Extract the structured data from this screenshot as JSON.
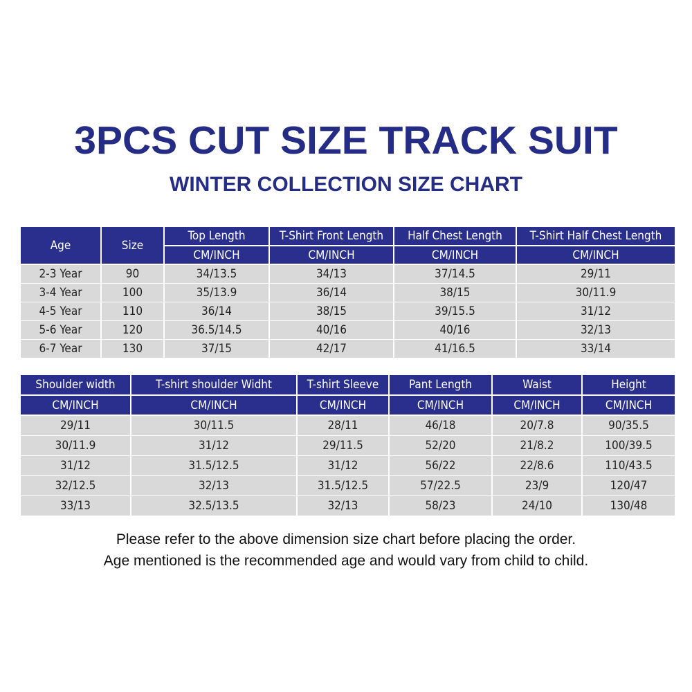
{
  "title": "3PCS CUT SIZE TRACK SUIT",
  "subtitle": "WINTER COLLECTION SIZE CHART",
  "table1": {
    "headers": [
      "Age",
      "Size",
      "Top Length",
      "T-Shirt Front Length",
      "Half Chest Length",
      "T-Shirt Half Chest Length"
    ],
    "units": [
      "CM/INCH",
      "CM/INCH",
      "CM/INCH",
      "CM/INCH"
    ],
    "rows": [
      [
        "2-3 Year",
        "90",
        "34/13.5",
        "34/13",
        "37/14.5",
        "29/11"
      ],
      [
        "3-4 Year",
        "100",
        "35/13.9",
        "36/14",
        "38/15",
        "30/11.9"
      ],
      [
        "4-5 Year",
        "110",
        "36/14",
        "38/15",
        "39/15.5",
        "31/12"
      ],
      [
        "5-6 Year",
        "120",
        "36.5/14.5",
        "40/16",
        "40/16",
        "32/13"
      ],
      [
        "6-7 Year",
        "130",
        "37/15",
        "42/17",
        "41/16.5",
        "33/14"
      ]
    ]
  },
  "table2": {
    "headers": [
      "Shoulder width",
      "T-shirt shoulder Widht",
      "T-shirt Sleeve",
      "Pant Length",
      "Waist",
      "Height"
    ],
    "units": [
      "CM/INCH",
      "CM/INCH",
      "CM/INCH",
      "CM/INCH",
      "CM/INCH",
      "CM/INCH"
    ],
    "rows": [
      [
        "29/11",
        "30/11.5",
        "28/11",
        "46/18",
        "20/7.8",
        "90/35.5"
      ],
      [
        "30/11.9",
        "31/12",
        "29/11.5",
        "52/20",
        "21/8.2",
        "100/39.5"
      ],
      [
        "31/12",
        "31.5/12.5",
        "31/12",
        "56/22",
        "22/8.6",
        "110/43.5"
      ],
      [
        "32/12.5",
        "32/13",
        "31.5/12.5",
        "57/22.5",
        "23/9",
        "120/47"
      ],
      [
        "33/13",
        "32.5/13.5",
        "32/13",
        "58/23",
        "24/10",
        "130/48"
      ]
    ]
  },
  "notes": [
    "Please refer to the above dimension size chart before placing the order.",
    "Age mentioned is the recommended age and would vary from child to child."
  ]
}
